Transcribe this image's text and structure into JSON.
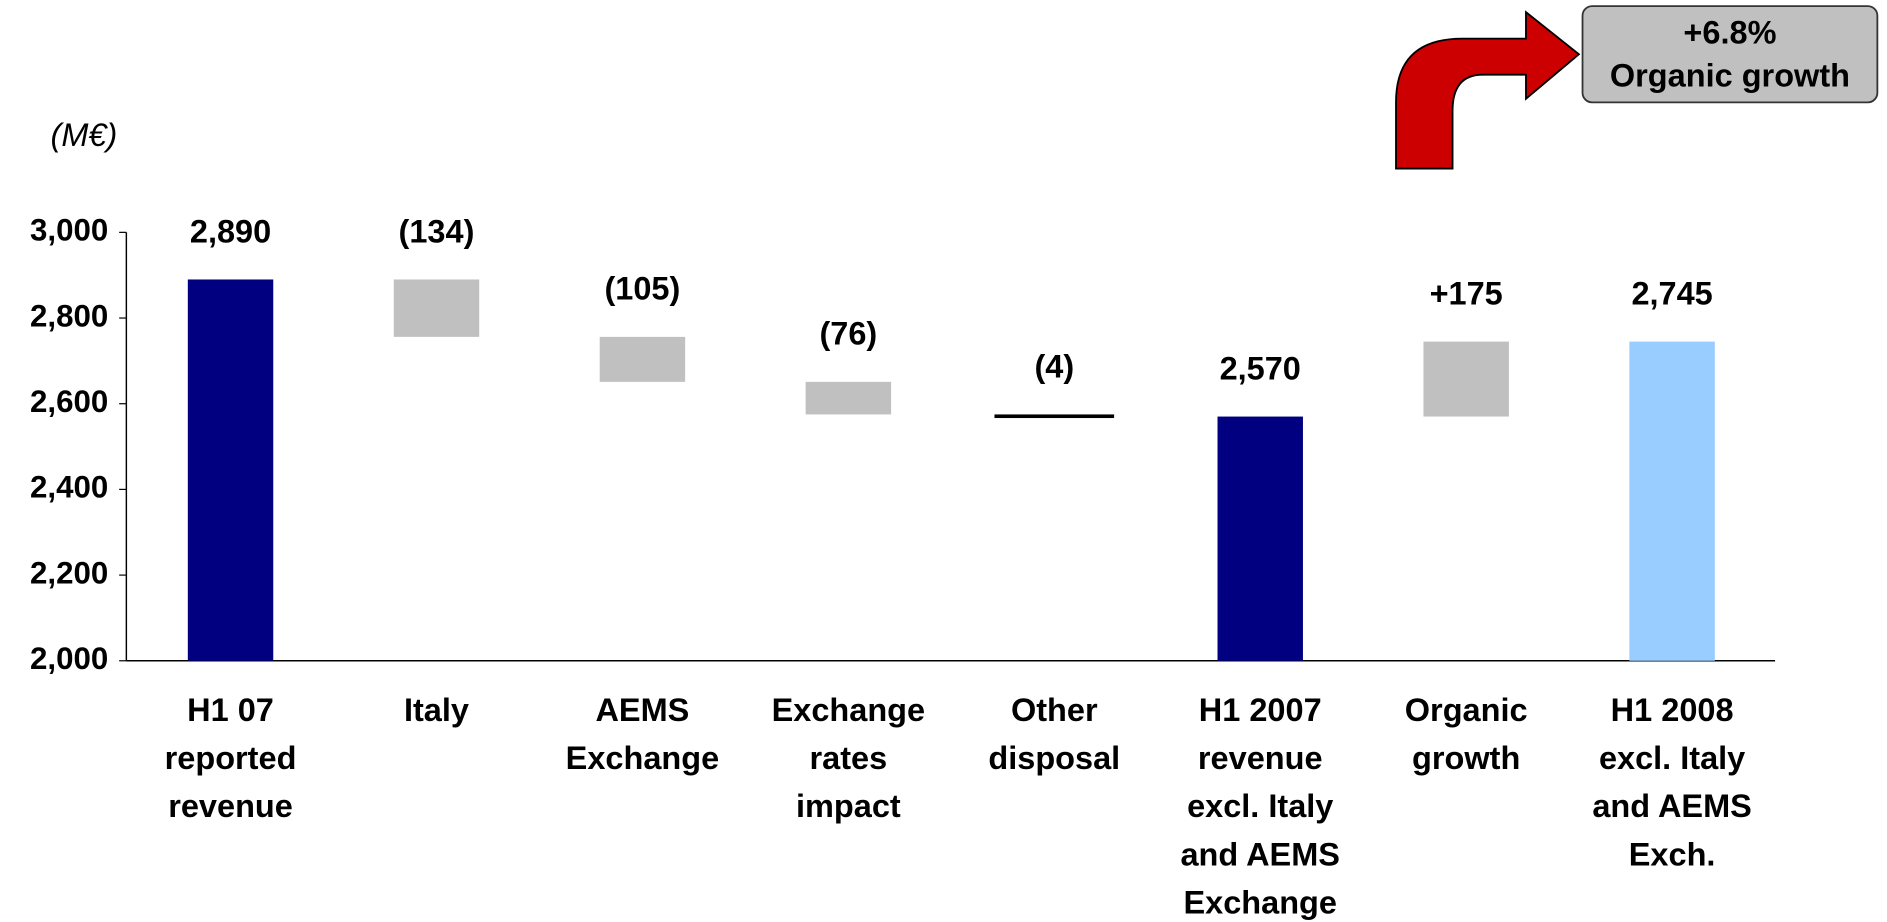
{
  "chart_data": {
    "type": "waterfall",
    "unit_label": "(M€)",
    "categories": [
      "H1 07\nreported\nrevenue",
      "Italy",
      "AEMS\nExchange",
      "Exchange\nrates\nimpact",
      "Other\ndisposal",
      "H1 2007\nrevenue\nexcl. Italy\nand AEMS\nExchange",
      "Organic\ngrowth",
      "H1 2008\nexcl. Italy\nand AEMS\nExch."
    ],
    "values": [
      2890,
      -134,
      -105,
      -76,
      -4,
      2570,
      175,
      2745
    ],
    "value_labels": [
      "2,890",
      "(134)",
      "(105)",
      "(76)",
      "(4)",
      "2,570",
      "+175",
      "2,745"
    ],
    "measure": [
      "total",
      "relative",
      "relative",
      "relative",
      "relative",
      "total",
      "relative",
      "total"
    ],
    "colors": [
      "#000080",
      "#c0c0c0",
      "#c0c0c0",
      "#c0c0c0",
      "#000000",
      "#000080",
      "#c0c0c0",
      "#99ccff"
    ],
    "ylim": [
      2000,
      3000
    ],
    "yticks": [
      {
        "value": 2000,
        "label": "2,000"
      },
      {
        "value": 2200,
        "label": "2,200"
      },
      {
        "value": 2400,
        "label": "2,400"
      },
      {
        "value": 2600,
        "label": "2,600"
      },
      {
        "value": 2800,
        "label": "2,800"
      },
      {
        "value": 3000,
        "label": "3,000"
      }
    ],
    "grid": false,
    "callout": "+6.8%\nOrganic growth"
  }
}
